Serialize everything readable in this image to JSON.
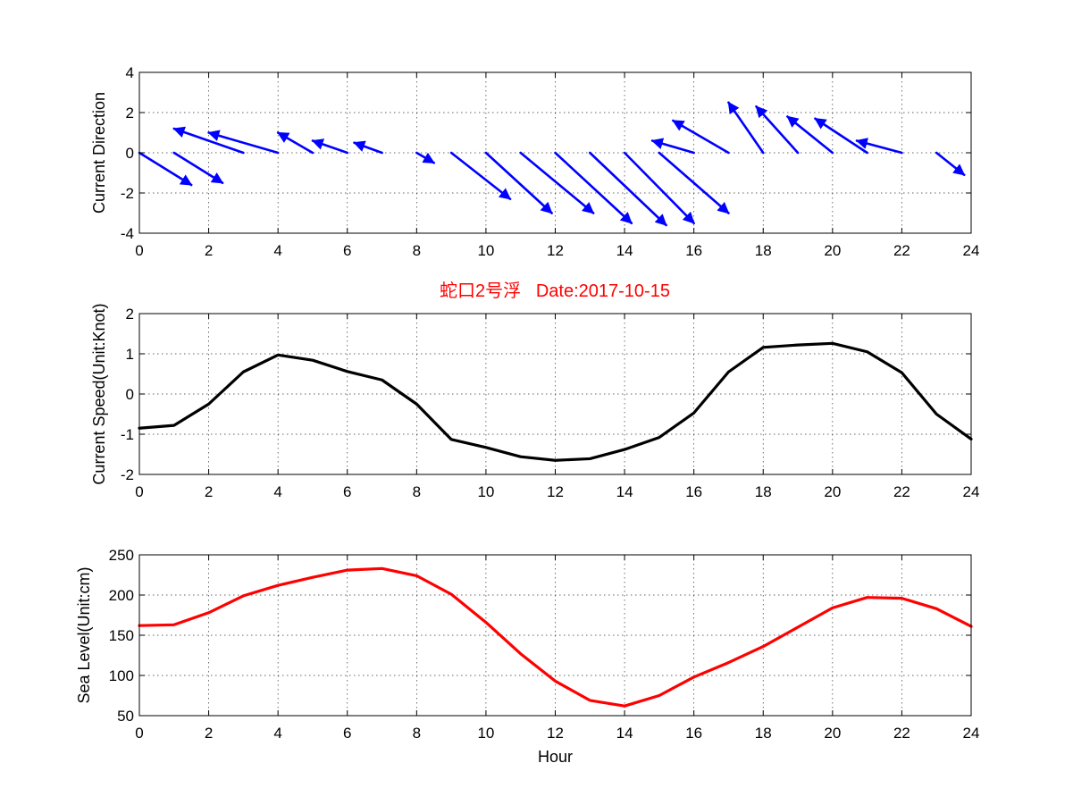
{
  "title": "蛇口2号浮   Date:2017-10-15",
  "colors": {
    "arrow": "#0000ff",
    "speed": "#000000",
    "level": "#ff0000",
    "title": "#ff0000"
  },
  "chart_data": [
    {
      "type": "quiver",
      "ylabel": "Current Direction",
      "xlabel": "",
      "xlim": [
        0,
        24
      ],
      "ylim": [
        -4,
        4
      ],
      "xticks": [
        0,
        2,
        4,
        6,
        8,
        10,
        12,
        14,
        16,
        18,
        20,
        22,
        24
      ],
      "yticks": [
        -4,
        -2,
        0,
        2,
        4
      ],
      "grid": true,
      "arrows": [
        {
          "x": 0,
          "u": 1.5,
          "v": -1.6
        },
        {
          "x": 1,
          "u": 1.4,
          "v": -1.5
        },
        {
          "x": 3,
          "u": -2.0,
          "v": 1.2
        },
        {
          "x": 4,
          "u": -2.0,
          "v": 1.0
        },
        {
          "x": 5,
          "u": -1.0,
          "v": 1.0
        },
        {
          "x": 6,
          "u": -1.0,
          "v": 0.6
        },
        {
          "x": 7,
          "u": -0.8,
          "v": 0.5
        },
        {
          "x": 8,
          "u": 0.5,
          "v": -0.5
        },
        {
          "x": 9,
          "u": 1.7,
          "v": -2.3
        },
        {
          "x": 10,
          "u": 1.9,
          "v": -3.0
        },
        {
          "x": 11,
          "u": 2.1,
          "v": -3.0
        },
        {
          "x": 12,
          "u": 2.2,
          "v": -3.5
        },
        {
          "x": 13,
          "u": 2.2,
          "v": -3.6
        },
        {
          "x": 14,
          "u": 2.0,
          "v": -3.5
        },
        {
          "x": 15,
          "u": 2.0,
          "v": -3.0
        },
        {
          "x": 16,
          "u": -1.2,
          "v": 0.6
        },
        {
          "x": 17,
          "u": -1.6,
          "v": 1.6
        },
        {
          "x": 18,
          "u": -1.0,
          "v": 2.5
        },
        {
          "x": 19,
          "u": -1.2,
          "v": 2.3
        },
        {
          "x": 20,
          "u": -1.3,
          "v": 1.8
        },
        {
          "x": 21,
          "u": -1.5,
          "v": 1.7
        },
        {
          "x": 22,
          "u": -1.3,
          "v": 0.6
        },
        {
          "x": 23,
          "u": 0.8,
          "v": -1.1
        }
      ]
    },
    {
      "type": "line",
      "ylabel": "Current Speed(Unit:Knot)",
      "xlabel": "",
      "xlim": [
        0,
        24
      ],
      "ylim": [
        -2,
        2
      ],
      "xticks": [
        0,
        2,
        4,
        6,
        8,
        10,
        12,
        14,
        16,
        18,
        20,
        22,
        24
      ],
      "yticks": [
        -2,
        -1,
        0,
        1,
        2
      ],
      "grid": true,
      "x": [
        0,
        1,
        2,
        3,
        4,
        5,
        6,
        7,
        8,
        9,
        10,
        11,
        12,
        13,
        14,
        15,
        16,
        17,
        18,
        19,
        20,
        21,
        22,
        23,
        24
      ],
      "y": [
        -0.85,
        -0.78,
        -0.25,
        0.55,
        0.97,
        0.84,
        0.56,
        0.35,
        -0.25,
        -1.13,
        -1.33,
        -1.56,
        -1.65,
        -1.61,
        -1.38,
        -1.08,
        -0.47,
        0.55,
        1.16,
        1.22,
        1.26,
        1.05,
        0.53,
        -0.5,
        -1.12
      ]
    },
    {
      "type": "line",
      "ylabel": "Sea Level(Unit:cm)",
      "xlabel": "Hour",
      "xlim": [
        0,
        24
      ],
      "ylim": [
        50,
        250
      ],
      "xticks": [
        0,
        2,
        4,
        6,
        8,
        10,
        12,
        14,
        16,
        18,
        20,
        22,
        24
      ],
      "yticks": [
        50,
        100,
        150,
        200,
        250
      ],
      "grid": true,
      "x": [
        0,
        1,
        2,
        3,
        4,
        5,
        6,
        7,
        8,
        9,
        10,
        11,
        12,
        13,
        14,
        15,
        16,
        17,
        18,
        19,
        20,
        21,
        22,
        23,
        24
      ],
      "y": [
        162,
        163,
        178,
        199,
        212,
        222,
        231,
        233,
        224,
        201,
        166,
        127,
        93,
        69,
        62,
        75,
        98,
        116,
        136,
        160,
        184,
        197,
        196,
        183,
        161
      ]
    }
  ]
}
